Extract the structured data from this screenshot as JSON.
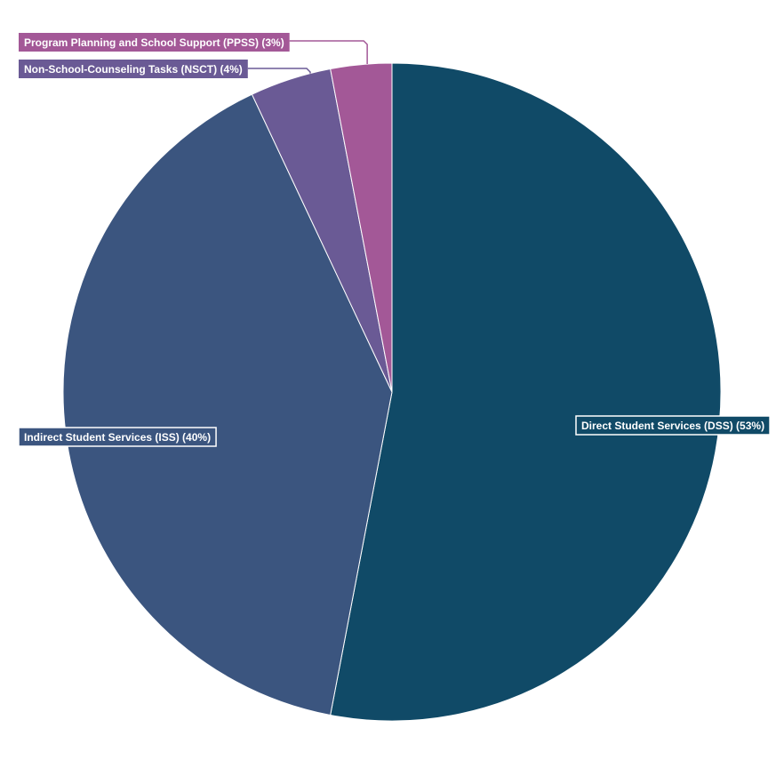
{
  "chart_data": {
    "type": "pie",
    "title": "",
    "start": "12 o'clock",
    "direction": "clockwise",
    "slices": [
      {
        "name": "Direct Student Services (DSS)",
        "value": 53,
        "label": "Direct Student Services (DSS) (53%)",
        "color": "#104a67"
      },
      {
        "name": "Indirect Student Services (ISS)",
        "value": 40,
        "label": "Indirect Student Services (ISS) (40%)",
        "color": "#3b557f"
      },
      {
        "name": "Non-School-Counseling Tasks (NSCT)",
        "value": 4,
        "label": "Non-School-Counseling Tasks (NSCT) (4%)",
        "color": "#6a5a95"
      },
      {
        "name": "Program Planning and School Support (PPSS)",
        "value": 3,
        "label": "Program Planning and School Support (PPSS) (3%)",
        "color": "#a35897"
      }
    ]
  }
}
